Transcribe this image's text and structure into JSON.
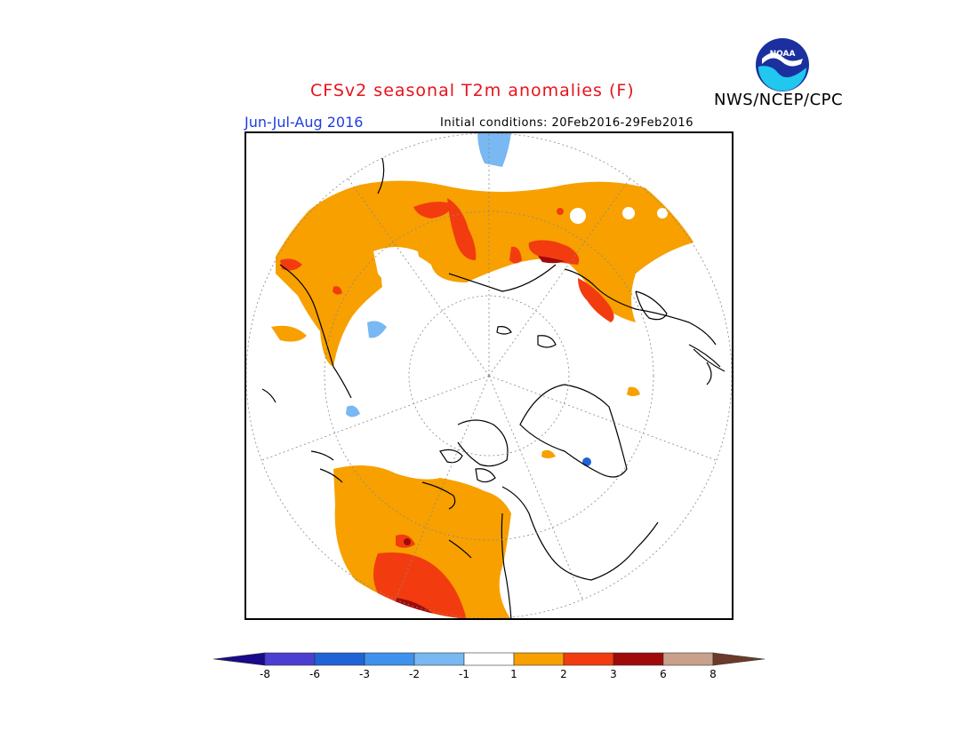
{
  "header": {
    "title": "CFSv2 seasonal T2m anomalies (F)",
    "agency": "NWS/NCEP/CPC",
    "logo_text": "NOAA",
    "season": "Jun-Jul-Aug 2016",
    "initial_conditions": "Initial conditions: 20Feb2016-29Feb2016"
  },
  "legend": {
    "tick_labels": [
      "-8",
      "-6",
      "-3",
      "-2",
      "-1",
      "1",
      "2",
      "3",
      "6",
      "8"
    ],
    "bins": [
      {
        "range": "< -8",
        "color": "#1a0a8c"
      },
      {
        "range": "-8 to -6",
        "color": "#4b3fd1"
      },
      {
        "range": "-6 to -3",
        "color": "#1f63d6"
      },
      {
        "range": "-3 to -2",
        "color": "#3d92ee"
      },
      {
        "range": "-2 to -1",
        "color": "#79b8f2"
      },
      {
        "range": "-1 to 1",
        "color": "#ffffff"
      },
      {
        "range": "1 to 2",
        "color": "#f7a000"
      },
      {
        "range": "2 to 3",
        "color": "#f23c10"
      },
      {
        "range": "3 to 6",
        "color": "#a00a0a"
      },
      {
        "range": "6 to 8",
        "color": "#c8a08c"
      },
      {
        "range": "> 8",
        "color": "#6b3a2a"
      }
    ]
  },
  "map": {
    "projection": "north-polar-stereographic",
    "background": "#ffffff",
    "coastline_color": "#000000",
    "grid_color": "#888888"
  }
}
